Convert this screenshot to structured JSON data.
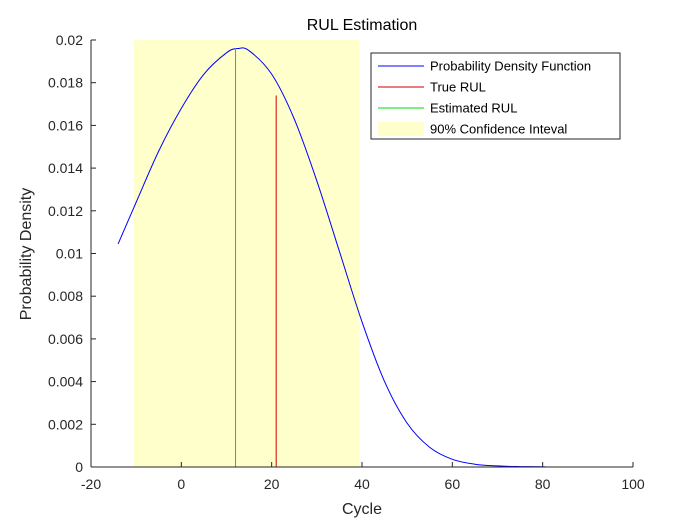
{
  "chart_data": {
    "type": "line",
    "title": "RUL Estimation",
    "xlabel": "Cycle",
    "ylabel": "Probability Density",
    "xlim": [
      -20,
      100
    ],
    "ylim": [
      0,
      0.02
    ],
    "xticks": [
      -20,
      0,
      20,
      40,
      60,
      80,
      100
    ],
    "xtick_labels": [
      "-20",
      "0",
      "20",
      "40",
      "60",
      "80",
      "100"
    ],
    "yticks": [
      0,
      0.002,
      0.004,
      0.006,
      0.008,
      0.01,
      0.012,
      0.014,
      0.016,
      0.018,
      0.02
    ],
    "ytick_labels": [
      "0",
      "0.002",
      "0.004",
      "0.006",
      "0.008",
      "0.01",
      "0.012",
      "0.014",
      "0.016",
      "0.018",
      "0.02"
    ],
    "grid": false,
    "legend_position": "top-right",
    "series": [
      {
        "name": "Probability Density Function",
        "color": "#0000ff",
        "x": [
          -14,
          -10,
          -5,
          0,
          5,
          10,
          12.5,
          15,
          20,
          25,
          30,
          35,
          40,
          45,
          50,
          55,
          60,
          65,
          70,
          75,
          80,
          81
        ],
        "y": [
          0.01045,
          0.0124,
          0.0148,
          0.0168,
          0.0184,
          0.0194,
          0.0196,
          0.0195,
          0.0184,
          0.0163,
          0.0134,
          0.0101,
          0.0068,
          0.004,
          0.00205,
          0.00092,
          0.00036,
          0.00013,
          5e-05,
          2e-05,
          1e-05,
          0
        ]
      },
      {
        "name": "True RUL",
        "color": "#cc0000",
        "x": [
          21,
          21
        ],
        "y": [
          0,
          0.0174
        ]
      },
      {
        "name": "Estimated RUL",
        "color": "#00dd00",
        "x": [
          12,
          12
        ],
        "y": [
          0,
          0.0196
        ]
      }
    ],
    "confidence_interval": {
      "name": "90% Confidence Inteval",
      "color": "#ffffcc",
      "x_range": [
        -10.5,
        39.5
      ]
    }
  }
}
